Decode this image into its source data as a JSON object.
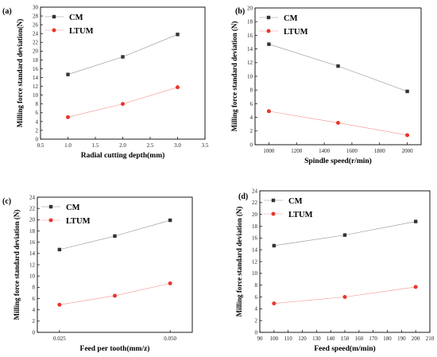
{
  "chart_data": [
    {
      "type": "line",
      "panel_label": "(a)",
      "xlabel": "Radial cutting depth(mm)",
      "ylabel": "Milling force standard deviation(N)",
      "xlim": [
        0.5,
        3.5
      ],
      "ylim": [
        0,
        30
      ],
      "xticks": [
        0.5,
        1.0,
        1.5,
        2.0,
        2.5,
        3.0,
        3.5
      ],
      "xtick_labels": [
        "0.5",
        "1.0",
        "1.5",
        "2.0",
        "2.5",
        "3.0",
        "3.5"
      ],
      "yticks": [
        0,
        2,
        4,
        6,
        8,
        10,
        12,
        14,
        16,
        18,
        20,
        22,
        24,
        26,
        28,
        30
      ],
      "ytick_labels": [
        "0",
        "2",
        "4",
        "6",
        "8",
        "10",
        "12",
        "14",
        "16",
        "18",
        "20",
        "22",
        "24",
        "26",
        "28",
        "30"
      ],
      "x": [
        1.0,
        2.0,
        3.0
      ],
      "series": [
        {
          "name": "CM",
          "values": [
            14.7,
            18.7,
            23.8
          ],
          "color": "#333333",
          "marker": "square"
        },
        {
          "name": "LTUM",
          "values": [
            5.0,
            8.0,
            11.8
          ],
          "color": "#e8372c",
          "marker": "circle"
        }
      ],
      "legend": "top-left"
    },
    {
      "type": "line",
      "panel_label": "(b)",
      "xlabel": "Spindle speed(r/min)",
      "ylabel": "Milling force standard deviation (N)",
      "xlim": [
        900,
        2100
      ],
      "ylim": [
        0,
        20
      ],
      "xticks": [
        1000,
        1200,
        1400,
        1600,
        1800,
        2000
      ],
      "xtick_labels": [
        "1000",
        "1200",
        "1400",
        "1600",
        "1800",
        "2000"
      ],
      "yticks": [
        0,
        2,
        4,
        6,
        8,
        10,
        12,
        14,
        16,
        18,
        20
      ],
      "ytick_labels": [
        "0",
        "2",
        "4",
        "6",
        "8",
        "10",
        "12",
        "14",
        "16",
        "18",
        "20"
      ],
      "x": [
        1000,
        1500,
        2000
      ],
      "series": [
        {
          "name": "CM",
          "values": [
            14.7,
            11.5,
            7.8
          ],
          "color": "#333333",
          "marker": "square"
        },
        {
          "name": "LTUM",
          "values": [
            4.9,
            3.2,
            1.4
          ],
          "color": "#e8372c",
          "marker": "circle"
        }
      ],
      "legend": "top-left"
    },
    {
      "type": "line",
      "panel_label": "(c)",
      "xlabel": "Feed per tooth(mm/z)",
      "ylabel": "Milling force standard deviation (N)",
      "xlim": [
        0.02,
        0.055
      ],
      "ylim": [
        0,
        24
      ],
      "xticks": [
        0.025,
        0.05
      ],
      "xtick_labels": [
        "0.025",
        "0.050"
      ],
      "yticks": [
        0,
        2,
        4,
        6,
        8,
        10,
        12,
        14,
        16,
        18,
        20,
        22,
        24
      ],
      "ytick_labels": [
        "0",
        "2",
        "4",
        "6",
        "8",
        "10",
        "12",
        "14",
        "16",
        "18",
        "20",
        "22",
        "24"
      ],
      "x": [
        0.025,
        0.0375,
        0.05
      ],
      "series": [
        {
          "name": "CM",
          "values": [
            14.7,
            17.1,
            19.9
          ],
          "color": "#333333",
          "marker": "square"
        },
        {
          "name": "LTUM",
          "values": [
            4.9,
            6.5,
            8.7
          ],
          "color": "#e8372c",
          "marker": "circle"
        }
      ],
      "legend": "top-left"
    },
    {
      "type": "line",
      "panel_label": "(d)",
      "xlabel": "Feed speed(m/min)",
      "ylabel": "Milling force standard deviation (N)",
      "xlim": [
        90,
        210
      ],
      "ylim": [
        0,
        24
      ],
      "xticks": [
        90,
        100,
        110,
        120,
        130,
        140,
        150,
        160,
        170,
        180,
        190,
        200,
        210
      ],
      "xtick_labels": [
        "90",
        "100",
        "110",
        "120",
        "130",
        "140",
        "150",
        "160",
        "170",
        "180",
        "190",
        "200",
        "210"
      ],
      "yticks": [
        0,
        2,
        4,
        6,
        8,
        10,
        12,
        14,
        16,
        18,
        20,
        22,
        24
      ],
      "ytick_labels": [
        "0",
        "2",
        "4",
        "6",
        "8",
        "10",
        "12",
        "14",
        "16",
        "18",
        "20",
        "22",
        "24"
      ],
      "x": [
        100,
        150,
        200
      ],
      "series": [
        {
          "name": "CM",
          "values": [
            14.7,
            16.5,
            18.8
          ],
          "color": "#333333",
          "marker": "square"
        },
        {
          "name": "LTUM",
          "values": [
            4.9,
            6.0,
            7.7
          ],
          "color": "#e8372c",
          "marker": "circle"
        }
      ],
      "legend": "top-left"
    }
  ]
}
